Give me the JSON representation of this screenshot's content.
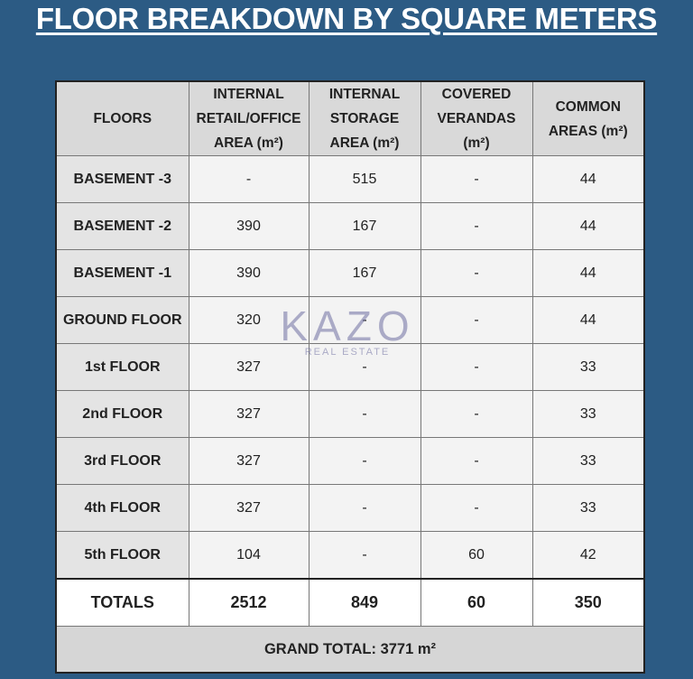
{
  "title": "FLOOR BREAKDOWN BY SQUARE METERS",
  "table": {
    "header": [
      "FLOORS",
      "INTERNAL RETAIL/OFFICE AREA (m²)",
      "INTERNAL STORAGE AREA (m²)",
      "COVERED VERANDAS (m²)",
      "COMMON AREAS (m²)"
    ],
    "rows": [
      [
        "BASEMENT -3",
        "-",
        515,
        "-",
        44
      ],
      [
        "BASEMENT -2",
        390,
        167,
        "-",
        44
      ],
      [
        "BASEMENT -1",
        390,
        167,
        "-",
        44
      ],
      [
        "GROUND FLOOR",
        320,
        "-",
        "-",
        44
      ],
      [
        "1st FLOOR",
        327,
        "-",
        "-",
        33
      ],
      [
        "2nd FLOOR",
        327,
        "-",
        "-",
        33
      ],
      [
        "3rd FLOOR",
        327,
        "-",
        "-",
        33
      ],
      [
        "4th FLOOR",
        327,
        "-",
        "-",
        33
      ],
      [
        "5th FLOOR",
        104,
        "-",
        60,
        42
      ]
    ],
    "totals": [
      "TOTALS",
      2512,
      849,
      60,
      350
    ],
    "grand_total": {
      "label": "GRAND TOTAL:",
      "value": 3771,
      "unit": "m²"
    }
  },
  "watermark": {
    "brand": "KAZO",
    "subtitle": "REAL ESTATE"
  }
}
